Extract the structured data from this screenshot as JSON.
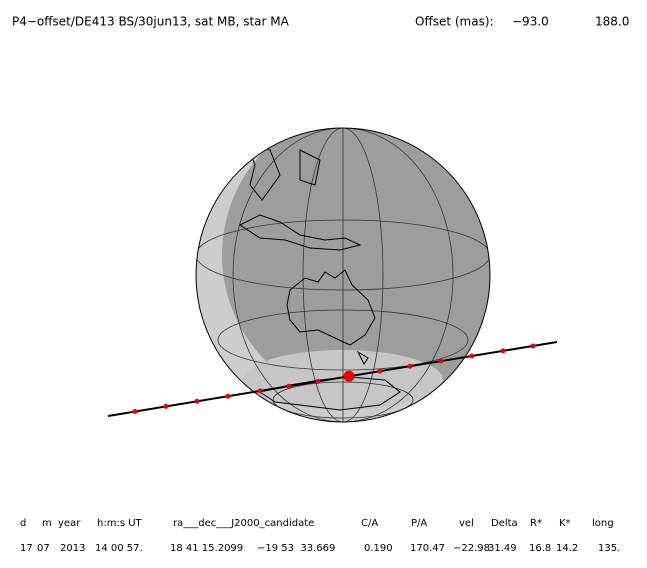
{
  "header": {
    "title": "P4−offset/DE413 BS/30jun13, sat MB, star MA",
    "offset_label": "Offset (mas):",
    "offset_values": [
      "−93.0",
      "188.0"
    ]
  },
  "table": {
    "headers": [
      "d",
      "m",
      "year",
      "h:m:s UT",
      "ra___dec___J2000_candidate",
      "C/A",
      "P/A",
      "vel",
      "Delta",
      "R*",
      "K*",
      "long"
    ],
    "row": [
      "17",
      "07",
      "2013",
      "14 00 57.",
      "18 41 15.2099",
      "−19 53  33.669",
      "0.190",
      "170.47",
      "−22.98",
      "31.49",
      "16.8",
      "14.2",
      "135."
    ]
  }
}
